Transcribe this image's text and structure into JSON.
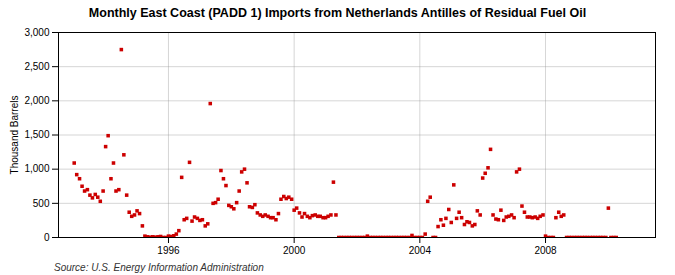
{
  "chart_data": {
    "type": "scatter",
    "title": "Monthly East Coast (PADD 1) Imports from Netherlands Antilles of Residual Fuel Oil",
    "ylabel": "Thousand Barrels",
    "caption": "Source: U.S. Energy Information Administration",
    "color": "#cc0000",
    "marker": "square",
    "grid": true,
    "xlim": [
      1992.5,
      2011.5
    ],
    "xticks": [
      1996,
      2000,
      2004,
      2008
    ],
    "ylim": [
      0,
      3000
    ],
    "yticks": [
      0,
      500,
      {
        "value": 1000,
        "label": "1,000"
      },
      {
        "value": 1500,
        "label": "1,500"
      },
      {
        "value": 2000,
        "label": "2,000"
      },
      {
        "value": 2500,
        "label": "2,500"
      },
      {
        "value": 3000,
        "label": "3,000"
      }
    ],
    "x": [
      1993.0,
      1993.08,
      1993.17,
      1993.25,
      1993.33,
      1993.42,
      1993.5,
      1993.58,
      1993.67,
      1993.75,
      1993.83,
      1993.92,
      1994.0,
      1994.08,
      1994.17,
      1994.25,
      1994.33,
      1994.42,
      1994.5,
      1994.58,
      1994.67,
      1994.75,
      1994.83,
      1994.92,
      1995.0,
      1995.08,
      1995.17,
      1995.25,
      1995.33,
      1995.42,
      1995.5,
      1995.58,
      1995.67,
      1995.75,
      1995.83,
      1995.92,
      1996.0,
      1996.08,
      1996.17,
      1996.25,
      1996.33,
      1996.42,
      1996.5,
      1996.58,
      1996.67,
      1996.75,
      1996.83,
      1996.92,
      1997.0,
      1997.08,
      1997.17,
      1997.25,
      1997.33,
      1997.42,
      1997.5,
      1997.58,
      1997.67,
      1997.75,
      1997.83,
      1997.92,
      1998.0,
      1998.08,
      1998.17,
      1998.25,
      1998.33,
      1998.42,
      1998.5,
      1998.58,
      1998.67,
      1998.75,
      1998.83,
      1998.92,
      1999.0,
      1999.08,
      1999.17,
      1999.25,
      1999.33,
      1999.42,
      1999.5,
      1999.58,
      1999.67,
      1999.75,
      1999.83,
      1999.92,
      2000.0,
      2000.08,
      2000.17,
      2000.25,
      2000.33,
      2000.42,
      2000.5,
      2000.58,
      2000.67,
      2000.75,
      2000.83,
      2000.92,
      2001.0,
      2001.08,
      2001.17,
      2001.25,
      2001.33,
      2001.42,
      2001.5,
      2001.58,
      2001.67,
      2001.75,
      2001.83,
      2001.92,
      2002.0,
      2002.08,
      2002.17,
      2002.25,
      2002.33,
      2002.42,
      2002.5,
      2002.58,
      2002.67,
      2002.75,
      2002.83,
      2002.92,
      2003.0,
      2003.08,
      2003.17,
      2003.25,
      2003.33,
      2003.42,
      2003.5,
      2003.58,
      2003.67,
      2003.75,
      2003.83,
      2003.92,
      2004.0,
      2004.08,
      2004.17,
      2004.25,
      2004.33,
      2004.42,
      2004.5,
      2004.58,
      2004.67,
      2004.75,
      2004.83,
      2004.92,
      2005.0,
      2005.08,
      2005.17,
      2005.25,
      2005.33,
      2005.42,
      2005.5,
      2005.58,
      2005.67,
      2005.75,
      2005.83,
      2005.92,
      2006.0,
      2006.08,
      2006.17,
      2006.25,
      2006.33,
      2006.42,
      2006.5,
      2006.58,
      2006.67,
      2006.75,
      2006.83,
      2006.92,
      2007.0,
      2007.08,
      2007.17,
      2007.25,
      2007.33,
      2007.42,
      2007.5,
      2007.58,
      2007.67,
      2007.75,
      2007.83,
      2007.92,
      2008.0,
      2008.08,
      2008.17,
      2008.25,
      2008.33,
      2008.42,
      2008.5,
      2008.58,
      2008.67,
      2008.75,
      2008.83,
      2008.92,
      2009.0,
      2009.08,
      2009.17,
      2009.25,
      2009.33,
      2009.42,
      2009.5,
      2009.58,
      2009.67,
      2009.75,
      2009.83,
      2009.92,
      2010.0,
      2010.08,
      2010.17,
      2010.25
    ],
    "values": [
      1090,
      920,
      860,
      750,
      680,
      700,
      620,
      580,
      630,
      590,
      530,
      680,
      1330,
      1490,
      860,
      1090,
      680,
      700,
      2750,
      1210,
      620,
      370,
      310,
      330,
      390,
      350,
      170,
      20,
      10,
      5,
      10,
      5,
      10,
      15,
      0,
      0,
      20,
      15,
      25,
      50,
      100,
      880,
      260,
      280,
      1100,
      240,
      300,
      280,
      250,
      260,
      170,
      200,
      1960,
      500,
      510,
      560,
      980,
      860,
      760,
      470,
      450,
      420,
      510,
      680,
      960,
      1000,
      800,
      450,
      440,
      480,
      360,
      330,
      310,
      330,
      310,
      290,
      290,
      260,
      350,
      560,
      600,
      570,
      590,
      560,
      400,
      430,
      360,
      300,
      350,
      310,
      290,
      320,
      330,
      310,
      310,
      290,
      290,
      310,
      330,
      810,
      330,
      0,
      0,
      0,
      0,
      0,
      0,
      0,
      0,
      0,
      0,
      0,
      20,
      0,
      0,
      0,
      0,
      0,
      0,
      0,
      0,
      0,
      0,
      0,
      0,
      0,
      0,
      0,
      0,
      30,
      0,
      0,
      0,
      0,
      50,
      530,
      590,
      0,
      0,
      160,
      260,
      180,
      280,
      410,
      220,
      770,
      280,
      370,
      290,
      190,
      230,
      220,
      170,
      190,
      390,
      330,
      870,
      940,
      1020,
      1290,
      330,
      270,
      260,
      400,
      250,
      300,
      310,
      330,
      290,
      960,
      1000,
      460,
      370,
      300,
      300,
      290,
      300,
      280,
      310,
      330,
      20,
      0,
      0,
      0,
      290,
      370,
      310,
      330,
      0,
      0,
      0,
      0,
      0,
      0,
      0,
      0,
      0,
      0,
      0,
      0,
      0,
      0,
      0,
      0,
      430,
      0,
      0,
      0
    ]
  }
}
